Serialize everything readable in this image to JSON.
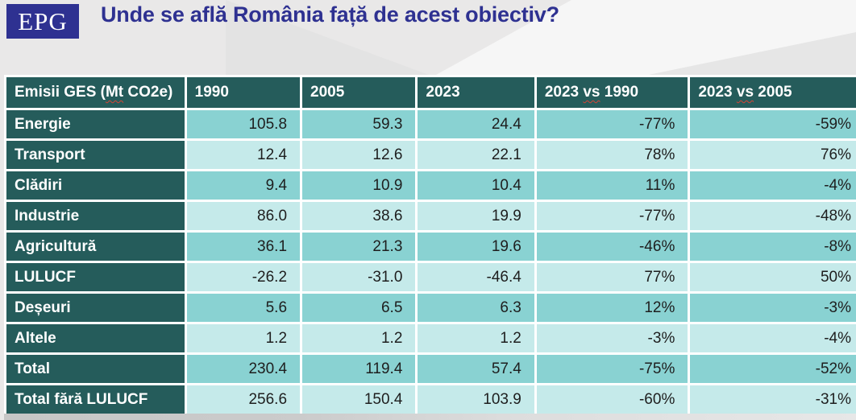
{
  "page": {
    "logo_text": "EPG",
    "title": "Unde se află România față de acest obiectiv?"
  },
  "colors": {
    "brand_blue": "#2e3191",
    "header_teal": "#255c5b",
    "row_band_dark": "#89d2d2",
    "row_band_light": "#c5eaea",
    "gridline": "#ffffff",
    "page_background": "#e9e8e8",
    "spellcheck_red": "#d94436"
  },
  "chart_data": {
    "type": "table",
    "title": "Unde se află România față de acest obiectiv?",
    "columns": [
      {
        "label": "Emisii GES (Mt CO2e)",
        "squiggle_word": "Mt"
      },
      {
        "label": "1990"
      },
      {
        "label": "2005"
      },
      {
        "label": "2023"
      },
      {
        "label": "2023 vs 1990",
        "squiggle_word": "vs"
      },
      {
        "label": "2023 vs 2005",
        "squiggle_word": "vs"
      }
    ],
    "rows": [
      {
        "label": "Energie",
        "values": [
          "105.8",
          "59.3",
          "24.4",
          "-77%",
          "-59%"
        ]
      },
      {
        "label": "Transport",
        "values": [
          "12.4",
          "12.6",
          "22.1",
          "78%",
          "76%"
        ]
      },
      {
        "label": "Clădiri",
        "values": [
          "9.4",
          "10.9",
          "10.4",
          "11%",
          "-4%"
        ]
      },
      {
        "label": "Industrie",
        "values": [
          "86.0",
          "38.6",
          "19.9",
          "-77%",
          "-48%"
        ]
      },
      {
        "label": "Agricultură",
        "values": [
          "36.1",
          "21.3",
          "19.6",
          "-46%",
          "-8%"
        ]
      },
      {
        "label": "LULUCF",
        "values": [
          "-26.2",
          "-31.0",
          "-46.4",
          "77%",
          "50%"
        ]
      },
      {
        "label": "Deșeuri",
        "values": [
          "5.6",
          "6.5",
          "6.3",
          "12%",
          "-3%"
        ]
      },
      {
        "label": "Altele",
        "values": [
          "1.2",
          "1.2",
          "1.2",
          "-3%",
          "-4%"
        ]
      },
      {
        "label": "Total",
        "values": [
          "230.4",
          "119.4",
          "57.4",
          "-75%",
          "-52%"
        ]
      },
      {
        "label": "Total fără LULUCF",
        "values": [
          "256.6",
          "150.4",
          "103.9",
          "-60%",
          "-31%"
        ]
      }
    ]
  }
}
